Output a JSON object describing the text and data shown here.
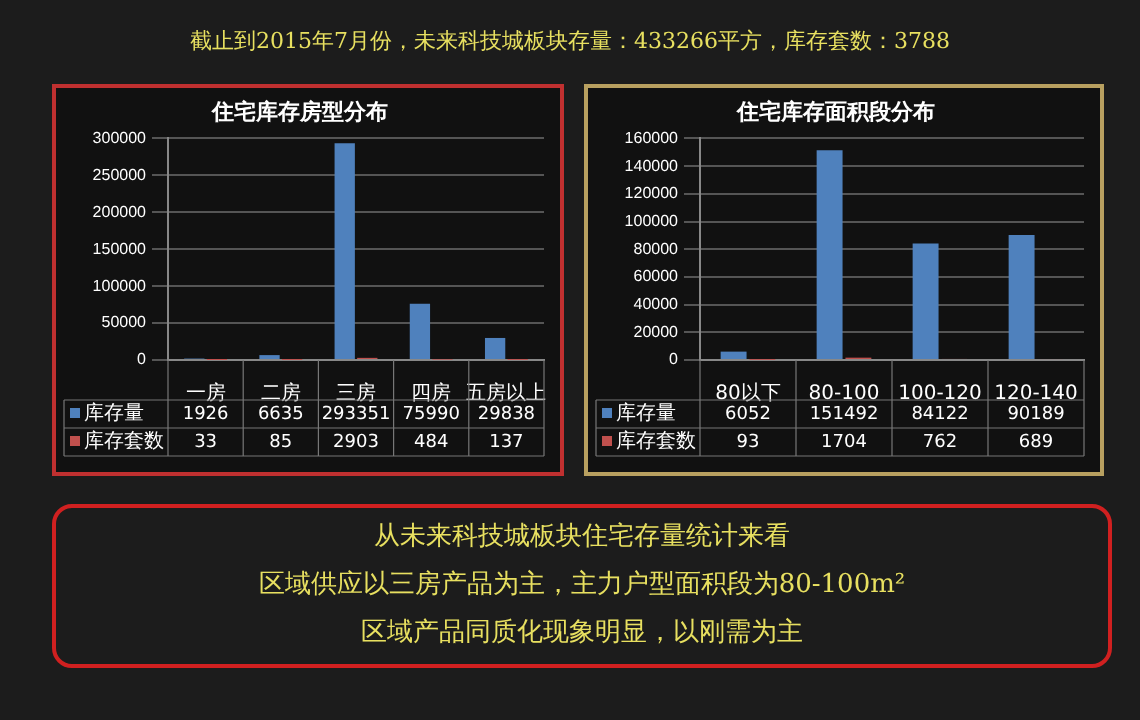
{
  "chart_data": [
    {
      "type": "other",
      "title": "截止到2015年7月份，未来科技城板块存量：433266平方，库存套数：3788"
    },
    {
      "type": "bar",
      "title": "住宅库存房型分布",
      "categories": [
        "一房",
        "二房",
        "三房",
        "四房",
        "五房以上"
      ],
      "series": [
        {
          "name": "库存量",
          "color": "#4f81bd",
          "values": [
            1926,
            6635,
            293351,
            75990,
            29838
          ]
        },
        {
          "name": "库存套数",
          "color": "#c0504d",
          "values": [
            33,
            85,
            2903,
            484,
            137
          ]
        }
      ],
      "ylim": [
        0,
        300000
      ],
      "yticks": [
        0,
        50000,
        100000,
        150000,
        200000,
        250000,
        300000
      ],
      "grid": "y",
      "data_labels": true,
      "legend": "bottom left"
    },
    {
      "type": "bar",
      "title": "住宅库存面积段分布",
      "categories": [
        "80以下",
        "80-100",
        "100-120",
        "120-140"
      ],
      "series": [
        {
          "name": "库存量",
          "color": "#4f81bd",
          "values": [
            6052,
            151492,
            84122,
            90189
          ]
        },
        {
          "name": "库存套数",
          "color": "#c0504d",
          "values": [
            93,
            1704,
            762,
            689
          ]
        }
      ],
      "ylim": [
        0,
        160000
      ],
      "yticks": [
        0,
        20000,
        40000,
        60000,
        80000,
        100000,
        120000,
        140000,
        160000
      ],
      "grid": "y",
      "data_labels": true,
      "legend": "bottom left"
    },
    {
      "type": "other",
      "annotations": [
        "从未来科技城板块住宅存量统计来看",
        "区域供应以三房产品为主，主力户型面积段为80-100m²",
        "区域产品同质化现象明显，以刚需为主"
      ]
    }
  ]
}
